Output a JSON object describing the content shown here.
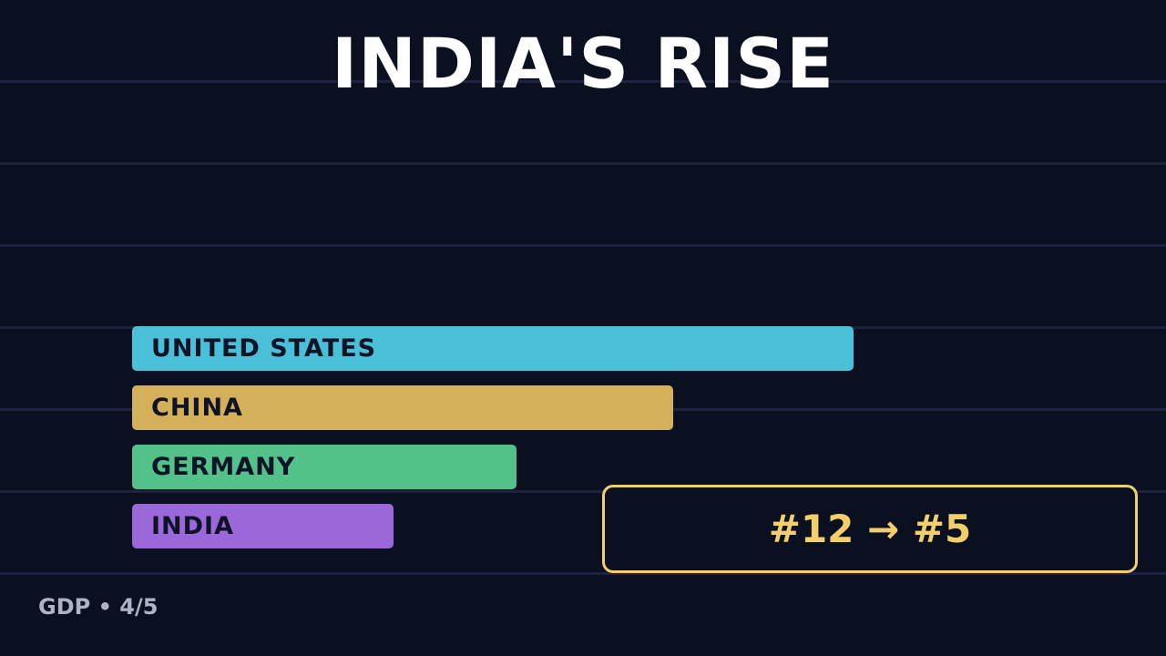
{
  "title": "INDIA'S RISE",
  "chart_data": {
    "type": "bar",
    "orientation": "horizontal",
    "categories": [
      "UNITED STATES",
      "CHINA",
      "GERMANY",
      "INDIA"
    ],
    "values": [
      100,
      75,
      53.3,
      36.3
    ],
    "colors": [
      "#4ac0d8",
      "#d4b05a",
      "#52c18a",
      "#9b68da"
    ],
    "grid": true,
    "xlim": [
      0,
      100
    ]
  },
  "callout": {
    "text": "#12 → #5",
    "color": "#f3cf6c"
  },
  "footer": "GDP • 4/5",
  "colors": {
    "background": "#0b1020",
    "gridline": "#1c2240",
    "bar_text": "#0f1326"
  }
}
